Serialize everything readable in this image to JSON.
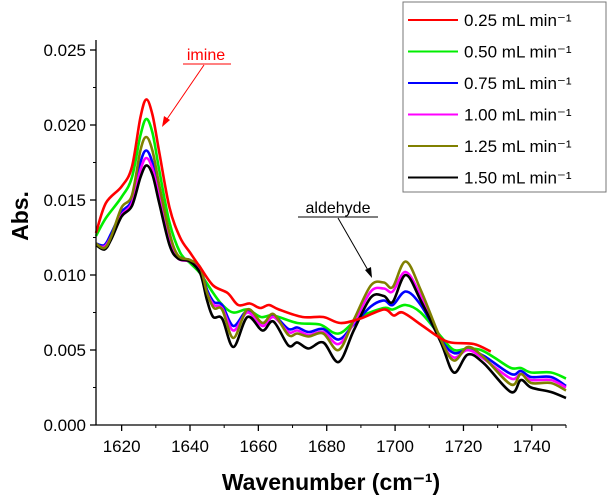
{
  "chart_data": {
    "type": "line",
    "title": "",
    "xlabel": "Wavenumber (cm⁻¹)",
    "ylabel": "Abs.",
    "xlim": [
      1612.5,
      1750
    ],
    "ylim": [
      0,
      0.025
    ],
    "xticks": [
      1620,
      1640,
      1660,
      1680,
      1700,
      1720,
      1740
    ],
    "xtick_labels": [
      "1620",
      "1640",
      "1660",
      "1680",
      "1700",
      "1720",
      "1740"
    ],
    "yticks": [
      0,
      0.005,
      0.01,
      0.015,
      0.02,
      0.025
    ],
    "ytick_labels": [
      "0.000",
      "0.005",
      "0.010",
      "0.015",
      "0.020",
      "0.025"
    ],
    "grid": false,
    "legend_position": "top-right",
    "annotations": [
      {
        "text": "imine",
        "color": "#ff0000",
        "points_to": [
          1627.5,
          0.02
        ]
      },
      {
        "text": "aldehyde",
        "color": "#000000",
        "points_to": [
          1693,
          0.0099
        ]
      }
    ],
    "series": [
      {
        "name": "0.25 mL min⁻¹",
        "color": "#ff0000",
        "points": [
          [
            1612.5,
            0.0128
          ],
          [
            1615.4,
            0.0148
          ],
          [
            1620,
            0.0159
          ],
          [
            1623,
            0.0172
          ],
          [
            1625.5,
            0.0205
          ],
          [
            1627.2,
            0.0217
          ],
          [
            1629,
            0.0207
          ],
          [
            1631,
            0.0182
          ],
          [
            1634,
            0.0145
          ],
          [
            1637.1,
            0.0125
          ],
          [
            1640,
            0.0115
          ],
          [
            1643,
            0.0105
          ],
          [
            1646.8,
            0.0093
          ],
          [
            1651,
            0.0088
          ],
          [
            1654.1,
            0.008
          ],
          [
            1657.5,
            0.0081
          ],
          [
            1660.5,
            0.0078
          ],
          [
            1663.1,
            0.008
          ],
          [
            1666,
            0.0077
          ],
          [
            1672.9,
            0.0072
          ],
          [
            1679,
            0.0072
          ],
          [
            1684,
            0.0068
          ],
          [
            1689.9,
            0.0071
          ],
          [
            1696.7,
            0.0077
          ],
          [
            1699.6,
            0.0073
          ],
          [
            1702.2,
            0.0075
          ],
          [
            1707.5,
            0.0067
          ],
          [
            1712.5,
            0.0059
          ],
          [
            1716.3,
            0.0055
          ],
          [
            1723,
            0.0054
          ],
          [
            1728,
            0.0049
          ]
        ]
      },
      {
        "name": "0.50 mL min⁻¹",
        "color": "#00ee00",
        "points": [
          [
            1612.5,
            0.0126
          ],
          [
            1615.4,
            0.0138
          ],
          [
            1620,
            0.0152
          ],
          [
            1623,
            0.0165
          ],
          [
            1625.5,
            0.0193
          ],
          [
            1627.2,
            0.0204
          ],
          [
            1629,
            0.0195
          ],
          [
            1631,
            0.017
          ],
          [
            1634,
            0.0135
          ],
          [
            1637.1,
            0.0115
          ],
          [
            1640,
            0.0108
          ],
          [
            1643,
            0.0101
          ],
          [
            1646.8,
            0.0088
          ],
          [
            1649.5,
            0.008
          ],
          [
            1652.7,
            0.0075
          ],
          [
            1656.8,
            0.0077
          ],
          [
            1660.7,
            0.0072
          ],
          [
            1664.4,
            0.0073
          ],
          [
            1671.4,
            0.0068
          ],
          [
            1678,
            0.0067
          ],
          [
            1683.5,
            0.0061
          ],
          [
            1689.7,
            0.0072
          ],
          [
            1696.7,
            0.0078
          ],
          [
            1699.3,
            0.0077
          ],
          [
            1703.1,
            0.008
          ],
          [
            1707.5,
            0.0075
          ],
          [
            1713.4,
            0.0059
          ],
          [
            1717.2,
            0.005
          ],
          [
            1721.3,
            0.0051
          ],
          [
            1725.1,
            0.005
          ],
          [
            1729,
            0.0045
          ],
          [
            1733.9,
            0.0038
          ],
          [
            1736.8,
            0.0038
          ],
          [
            1739.8,
            0.0035
          ],
          [
            1745.6,
            0.0035
          ],
          [
            1750,
            0.0031
          ]
        ]
      },
      {
        "name": "0.75 mL min⁻¹",
        "color": "#0000ff",
        "points": [
          [
            1612.5,
            0.0121
          ],
          [
            1615,
            0.012
          ],
          [
            1617,
            0.0128
          ],
          [
            1620,
            0.0142
          ],
          [
            1623,
            0.015
          ],
          [
            1625.5,
            0.0175
          ],
          [
            1627.2,
            0.0183
          ],
          [
            1629,
            0.0175
          ],
          [
            1631,
            0.0155
          ],
          [
            1634,
            0.0125
          ],
          [
            1636.5,
            0.0112
          ],
          [
            1640,
            0.011
          ],
          [
            1643,
            0.0104
          ],
          [
            1645,
            0.009
          ],
          [
            1647,
            0.0082
          ],
          [
            1649.4,
            0.008
          ],
          [
            1652.7,
            0.0066
          ],
          [
            1656.8,
            0.0076
          ],
          [
            1661.2,
            0.0068
          ],
          [
            1664.4,
            0.0073
          ],
          [
            1668.8,
            0.0064
          ],
          [
            1671.4,
            0.0065
          ],
          [
            1674.7,
            0.0062
          ],
          [
            1679,
            0.0064
          ],
          [
            1683.5,
            0.0057
          ],
          [
            1687.9,
            0.0067
          ],
          [
            1692.9,
            0.0079
          ],
          [
            1696.7,
            0.0083
          ],
          [
            1699.3,
            0.008
          ],
          [
            1703.1,
            0.0089
          ],
          [
            1707.5,
            0.008
          ],
          [
            1713.4,
            0.0057
          ],
          [
            1717.2,
            0.0048
          ],
          [
            1721.3,
            0.005
          ],
          [
            1726,
            0.0046
          ],
          [
            1733.9,
            0.0034
          ],
          [
            1736.8,
            0.0036
          ],
          [
            1739.8,
            0.0032
          ],
          [
            1745.6,
            0.0032
          ],
          [
            1750,
            0.0026
          ]
        ]
      },
      {
        "name": "1.00 mL min⁻¹",
        "color": "#ff00ff",
        "points": [
          [
            1612.5,
            0.012
          ],
          [
            1615,
            0.0119
          ],
          [
            1617,
            0.0126
          ],
          [
            1620,
            0.014
          ],
          [
            1623,
            0.0148
          ],
          [
            1625.5,
            0.017
          ],
          [
            1627.2,
            0.0178
          ],
          [
            1629,
            0.0171
          ],
          [
            1631,
            0.0152
          ],
          [
            1634,
            0.0123
          ],
          [
            1636.5,
            0.0111
          ],
          [
            1640,
            0.0109
          ],
          [
            1643,
            0.0103
          ],
          [
            1645,
            0.0088
          ],
          [
            1647,
            0.008
          ],
          [
            1649.4,
            0.0078
          ],
          [
            1652.7,
            0.0063
          ],
          [
            1656.8,
            0.0075
          ],
          [
            1661.2,
            0.0066
          ],
          [
            1664.4,
            0.0072
          ],
          [
            1668.8,
            0.0062
          ],
          [
            1671.4,
            0.0063
          ],
          [
            1674.7,
            0.006
          ],
          [
            1679,
            0.0062
          ],
          [
            1683.5,
            0.0054
          ],
          [
            1687.9,
            0.0068
          ],
          [
            1692.9,
            0.0089
          ],
          [
            1696.7,
            0.0091
          ],
          [
            1699.3,
            0.0089
          ],
          [
            1703.1,
            0.0102
          ],
          [
            1707.5,
            0.0086
          ],
          [
            1713.4,
            0.0056
          ],
          [
            1717.2,
            0.0045
          ],
          [
            1721.3,
            0.005
          ],
          [
            1726,
            0.0044
          ],
          [
            1733.9,
            0.0031
          ],
          [
            1736.8,
            0.0034
          ],
          [
            1739.8,
            0.003
          ],
          [
            1745.6,
            0.003
          ],
          [
            1750,
            0.0025
          ]
        ]
      },
      {
        "name": "1.25 mL min⁻¹",
        "color": "#808000",
        "points": [
          [
            1612.5,
            0.0121
          ],
          [
            1615,
            0.0118
          ],
          [
            1617,
            0.0126
          ],
          [
            1620,
            0.0145
          ],
          [
            1623,
            0.0153
          ],
          [
            1625.5,
            0.0183
          ],
          [
            1627.2,
            0.0192
          ],
          [
            1629,
            0.0183
          ],
          [
            1631,
            0.016
          ],
          [
            1634,
            0.0128
          ],
          [
            1636.5,
            0.0113
          ],
          [
            1640,
            0.011
          ],
          [
            1643,
            0.0105
          ],
          [
            1645,
            0.0088
          ],
          [
            1647,
            0.0078
          ],
          [
            1649.4,
            0.0077
          ],
          [
            1652.7,
            0.0058
          ],
          [
            1656.8,
            0.0077
          ],
          [
            1661.2,
            0.0068
          ],
          [
            1664.4,
            0.0074
          ],
          [
            1668.8,
            0.006
          ],
          [
            1671.4,
            0.0061
          ],
          [
            1674.7,
            0.0059
          ],
          [
            1679,
            0.0061
          ],
          [
            1683.5,
            0.005
          ],
          [
            1687.9,
            0.007
          ],
          [
            1692.9,
            0.0093
          ],
          [
            1696.7,
            0.0095
          ],
          [
            1699.3,
            0.0092
          ],
          [
            1703.1,
            0.0109
          ],
          [
            1707.5,
            0.009
          ],
          [
            1713.4,
            0.0057
          ],
          [
            1717.2,
            0.0043
          ],
          [
            1721.3,
            0.0052
          ],
          [
            1726,
            0.0045
          ],
          [
            1733.9,
            0.0027
          ],
          [
            1736.8,
            0.0034
          ],
          [
            1739.8,
            0.0028
          ],
          [
            1745.6,
            0.0028
          ],
          [
            1750,
            0.0023
          ]
        ]
      },
      {
        "name": "1.50 mL min⁻¹",
        "color": "#000000",
        "points": [
          [
            1612.5,
            0.012
          ],
          [
            1615,
            0.0117
          ],
          [
            1617,
            0.0124
          ],
          [
            1620,
            0.0139
          ],
          [
            1623,
            0.0146
          ],
          [
            1625.5,
            0.0165
          ],
          [
            1627.2,
            0.0173
          ],
          [
            1629,
            0.0167
          ],
          [
            1631,
            0.0148
          ],
          [
            1634,
            0.012
          ],
          [
            1636.5,
            0.0111
          ],
          [
            1640,
            0.0109
          ],
          [
            1643,
            0.0101
          ],
          [
            1645,
            0.0083
          ],
          [
            1646.8,
            0.0072
          ],
          [
            1649.4,
            0.0071
          ],
          [
            1652.7,
            0.0052
          ],
          [
            1656.8,
            0.0072
          ],
          [
            1661.2,
            0.0063
          ],
          [
            1664.4,
            0.0069
          ],
          [
            1668.8,
            0.0053
          ],
          [
            1671.4,
            0.0055
          ],
          [
            1674.7,
            0.0051
          ],
          [
            1679,
            0.0055
          ],
          [
            1683.5,
            0.0042
          ],
          [
            1687.9,
            0.0063
          ],
          [
            1692.9,
            0.0085
          ],
          [
            1696.7,
            0.0086
          ],
          [
            1699.3,
            0.0082
          ],
          [
            1703.1,
            0.01
          ],
          [
            1707.5,
            0.0083
          ],
          [
            1713.4,
            0.0055
          ],
          [
            1717.2,
            0.0035
          ],
          [
            1721.3,
            0.0047
          ],
          [
            1726,
            0.0041
          ],
          [
            1733.9,
            0.0022
          ],
          [
            1736.8,
            0.003
          ],
          [
            1739.8,
            0.0025
          ],
          [
            1745.6,
            0.0022
          ],
          [
            1750,
            0.0018
          ]
        ]
      }
    ]
  }
}
